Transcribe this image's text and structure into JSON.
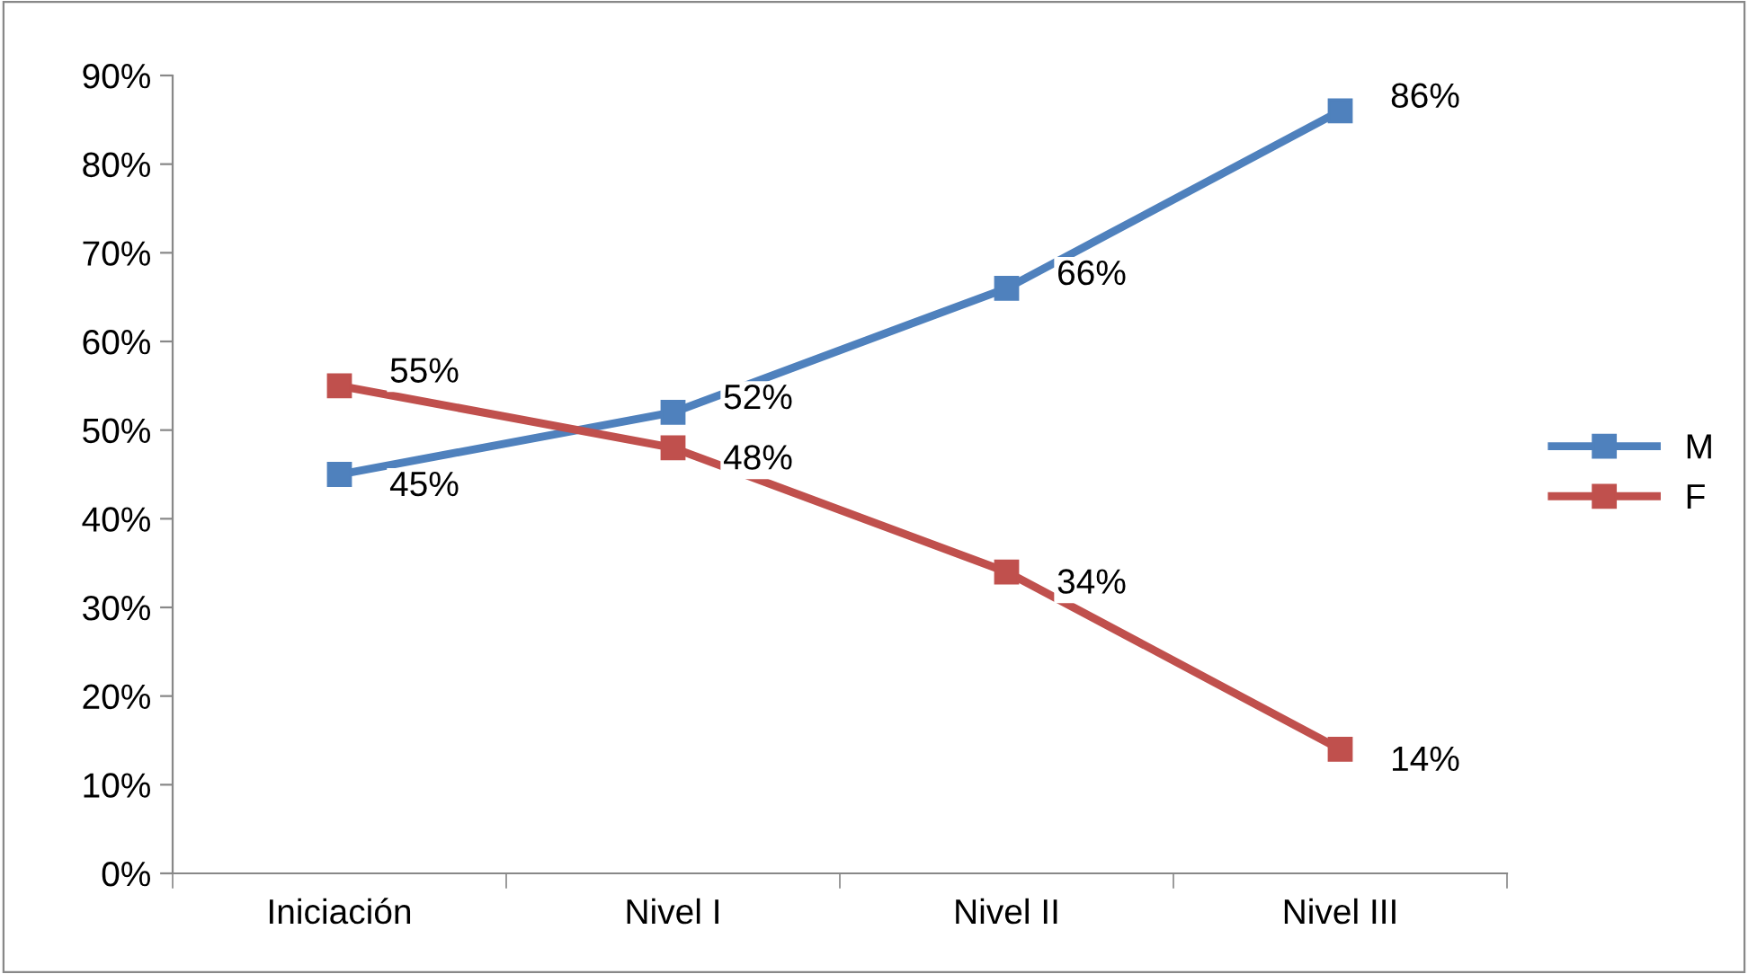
{
  "chart_data": {
    "type": "line",
    "categories": [
      "Iniciación",
      "Nivel I",
      "Nivel II",
      "Nivel III"
    ],
    "series": [
      {
        "name": "M",
        "color": "#4f81bd",
        "values": [
          45,
          52,
          66,
          86
        ],
        "value_labels": [
          "45%",
          "52%",
          "66%",
          "86%"
        ]
      },
      {
        "name": "F",
        "color": "#c0504d",
        "values": [
          55,
          48,
          34,
          14
        ],
        "value_labels": [
          "55%",
          "48%",
          "34%",
          "14%"
        ]
      }
    ],
    "ylim": [
      0,
      90
    ],
    "yticks": [
      {
        "value": 0,
        "label": "0%"
      },
      {
        "value": 10,
        "label": "10%"
      },
      {
        "value": 20,
        "label": "20%"
      },
      {
        "value": 30,
        "label": "30%"
      },
      {
        "value": 40,
        "label": "40%"
      },
      {
        "value": 50,
        "label": "50%"
      },
      {
        "value": 60,
        "label": "60%"
      },
      {
        "value": 70,
        "label": "70%"
      },
      {
        "value": 80,
        "label": "80%"
      },
      {
        "value": 90,
        "label": "90%"
      }
    ],
    "marker": "square",
    "line_style": "solid",
    "grid": false,
    "legend": "right"
  }
}
